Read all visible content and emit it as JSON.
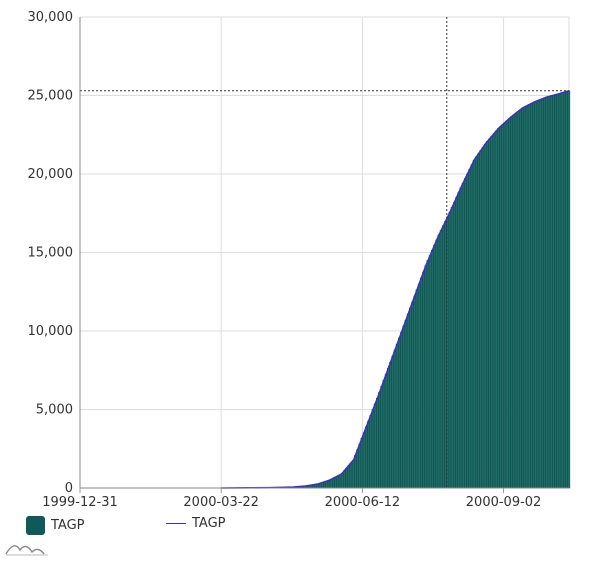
{
  "colors": {
    "bar_fill": "#1f6b66",
    "bar_stroke": "#0f4a46",
    "line": "#3a2fc8",
    "grid": "#dddddd",
    "crosshair": "#333333",
    "legend_box": "#0f5a58"
  },
  "legend": {
    "bar_label": "TAGP",
    "line_label": "TAGP"
  },
  "icons": {
    "logo": "chart-logo-icon"
  },
  "chart_data": {
    "type": "bar",
    "title": "",
    "xlabel": "",
    "ylabel": "",
    "ylim": [
      0,
      30000
    ],
    "yticks": [
      0,
      5000,
      10000,
      15000,
      20000,
      25000,
      30000
    ],
    "ytick_labels": [
      "0",
      "5,000",
      "10,000",
      "15,000",
      "20,000",
      "25,000",
      "30,000"
    ],
    "xticks": [
      "1999-12-31",
      "2000-03-22",
      "2000-06-12",
      "2000-09-02"
    ],
    "x_start": "1999-12-31",
    "x_end": "2000-10-10",
    "crosshair": {
      "x": "2000-07-31",
      "y": 25300
    },
    "series": [
      {
        "name": "TAGP",
        "kind": "bar",
        "x": [
          "2000-03-22",
          "2000-04-05",
          "2000-04-19",
          "2000-05-03",
          "2000-05-10",
          "2000-05-17",
          "2000-05-24",
          "2000-05-31",
          "2000-06-07",
          "2000-06-14",
          "2000-06-21",
          "2000-06-28",
          "2000-07-05",
          "2000-07-12",
          "2000-07-19",
          "2000-07-26",
          "2000-08-02",
          "2000-08-09",
          "2000-08-16",
          "2000-08-23",
          "2000-08-30",
          "2000-09-06",
          "2000-09-13",
          "2000-09-20",
          "2000-09-27",
          "2000-10-04",
          "2000-10-10"
        ],
        "values": [
          0,
          10,
          20,
          60,
          120,
          250,
          500,
          900,
          1800,
          3800,
          5800,
          7900,
          10000,
          12100,
          14200,
          16000,
          17600,
          19300,
          20900,
          22000,
          22900,
          23600,
          24200,
          24600,
          24900,
          25100,
          25300
        ]
      },
      {
        "name": "TAGP",
        "kind": "line",
        "x": [
          "2000-03-22",
          "2000-04-05",
          "2000-04-19",
          "2000-05-03",
          "2000-05-10",
          "2000-05-17",
          "2000-05-24",
          "2000-05-31",
          "2000-06-07",
          "2000-06-14",
          "2000-06-21",
          "2000-06-28",
          "2000-07-05",
          "2000-07-12",
          "2000-07-19",
          "2000-07-26",
          "2000-08-02",
          "2000-08-09",
          "2000-08-16",
          "2000-08-23",
          "2000-08-30",
          "2000-09-06",
          "2000-09-13",
          "2000-09-20",
          "2000-09-27",
          "2000-10-04",
          "2000-10-10"
        ],
        "values": [
          0,
          10,
          20,
          60,
          120,
          250,
          500,
          900,
          1800,
          3800,
          5800,
          7900,
          10000,
          12100,
          14200,
          16000,
          17600,
          19300,
          20900,
          22000,
          22900,
          23600,
          24200,
          24600,
          24900,
          25100,
          25300
        ]
      }
    ]
  }
}
